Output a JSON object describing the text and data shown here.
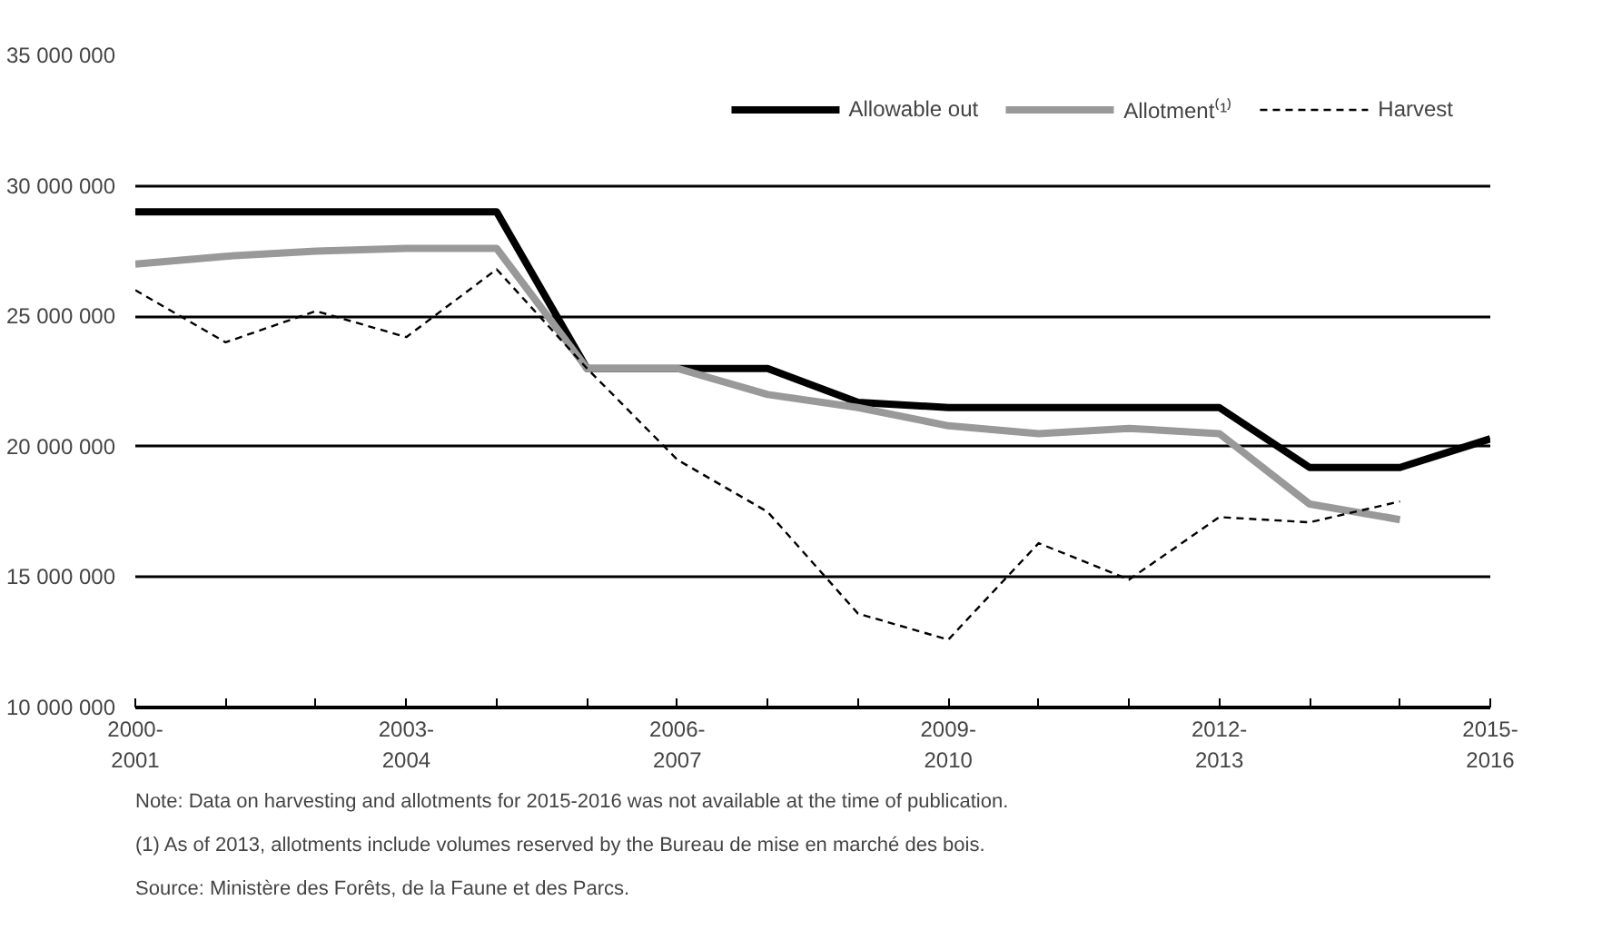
{
  "chart_data": {
    "type": "line",
    "categories": [
      "2000-\n2001",
      null,
      null,
      "2003-\n2004",
      null,
      null,
      "2006-\n2007",
      null,
      null,
      "2009-\n2010",
      null,
      null,
      "2012-\n2013",
      null,
      null,
      "2015-\n2016"
    ],
    "series": [
      {
        "name": "Allowable out",
        "color": "#000000",
        "line_style": "solid",
        "values": [
          29000000,
          29000000,
          29000000,
          29000000,
          29000000,
          23000000,
          23000000,
          23000000,
          21700000,
          21500000,
          21500000,
          21500000,
          21500000,
          19200000,
          19200000,
          20300000
        ]
      },
      {
        "name": "Allotment⁽¹⁾",
        "color": "#999999",
        "line_style": "solid",
        "values": [
          27000000,
          27300000,
          27500000,
          27600000,
          27600000,
          23000000,
          23000000,
          22000000,
          21500000,
          20800000,
          20500000,
          20700000,
          20500000,
          17800000,
          17200000,
          null
        ]
      },
      {
        "name": "Harvest",
        "color": "#000000",
        "line_style": "dashed",
        "values": [
          26000000,
          24000000,
          25200000,
          24200000,
          26800000,
          23000000,
          19500000,
          17500000,
          13600000,
          12600000,
          16300000,
          14900000,
          17300000,
          17100000,
          17900000,
          null
        ]
      }
    ],
    "ylim": [
      10000000,
      35000000
    ],
    "yticks": [
      {
        "value": 10000000,
        "label": "10 000 000"
      },
      {
        "value": 15000000,
        "label": "15 000 000"
      },
      {
        "value": 20000000,
        "label": "20 000 000"
      },
      {
        "value": 25000000,
        "label": "25 000 000"
      },
      {
        "value": 30000000,
        "label": "30 000 000"
      },
      {
        "value": 35000000,
        "label": "35 000 000"
      }
    ],
    "grid": "y",
    "legend": "top right",
    "marker": "none",
    "annotations": [
      "Note:   Data on harvesting and allotments for 2015-2016 was not available at the time of publication.",
      "(1)  As of 2013, allotments include volumes reserved by the Bureau de mise en marché des bois.",
      "Source:  Ministère des Forêts, de la Faune et des Parcs."
    ]
  }
}
